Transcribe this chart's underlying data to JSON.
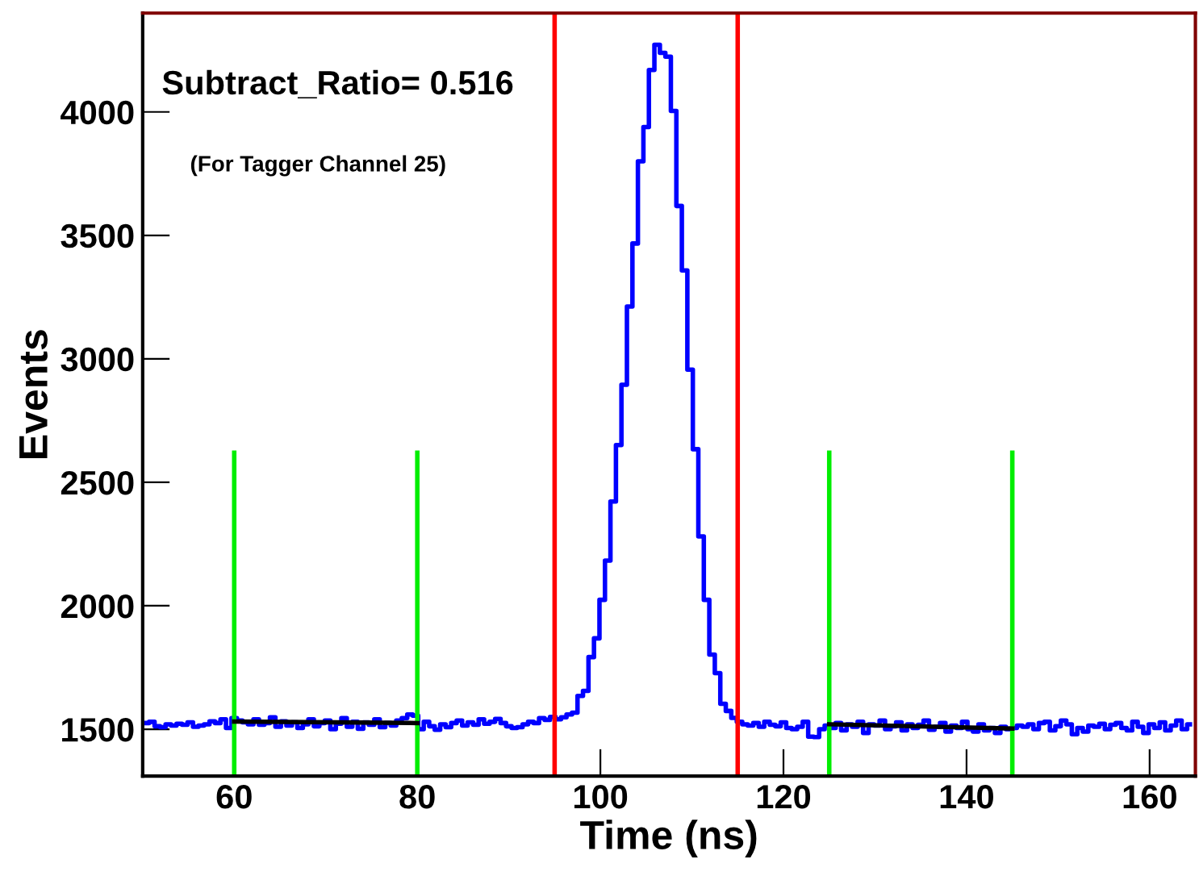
{
  "chart_data": {
    "type": "step",
    "xlabel": "Time (ns)",
    "ylabel": "Events",
    "annotations": [
      "Subtract_Ratio= 0.516",
      "(For Tagger Channel 25)"
    ],
    "x": [
      50.4,
      51.0,
      51.6,
      52.2,
      52.8,
      53.4,
      54.0,
      54.6,
      55.2,
      55.8,
      56.4,
      57.0,
      57.6,
      58.2,
      58.8,
      59.4,
      60.0,
      60.6,
      61.2,
      61.8,
      62.4,
      63.0,
      63.6,
      64.2,
      64.8,
      65.4,
      66.0,
      66.6,
      67.2,
      67.8,
      68.4,
      69.0,
      69.6,
      70.2,
      70.8,
      71.4,
      72.0,
      72.6,
      73.2,
      73.8,
      74.4,
      75.0,
      75.6,
      76.2,
      76.8,
      77.4,
      78.0,
      78.6,
      79.2,
      79.8,
      80.4,
      81.0,
      81.6,
      82.2,
      82.8,
      83.4,
      84.0,
      84.6,
      85.2,
      85.8,
      86.4,
      87.0,
      87.6,
      88.2,
      88.8,
      89.4,
      90.0,
      90.6,
      91.2,
      91.8,
      92.4,
      93.0,
      93.6,
      94.2,
      94.8,
      95.4,
      96.0,
      96.6,
      97.2,
      97.8,
      98.4,
      99.0,
      99.6,
      100.2,
      100.8,
      101.4,
      102.0,
      102.6,
      103.2,
      103.8,
      104.4,
      105.0,
      105.6,
      106.2,
      106.8,
      107.4,
      108.0,
      108.6,
      109.2,
      109.8,
      110.4,
      111.0,
      111.6,
      112.2,
      112.8,
      113.4,
      114.0,
      114.6,
      115.2,
      115.8,
      116.4,
      117.0,
      117.6,
      118.2,
      118.8,
      119.4,
      120.0,
      120.6,
      121.2,
      121.8,
      122.4,
      123.0,
      123.6,
      124.2,
      124.8,
      125.4,
      126.0,
      126.6,
      127.2,
      127.8,
      128.4,
      129.0,
      129.6,
      130.2,
      130.8,
      131.4,
      132.0,
      132.6,
      133.2,
      133.8,
      134.4,
      135.0,
      135.6,
      136.2,
      136.8,
      137.4,
      138.0,
      138.6,
      139.2,
      139.8,
      140.4,
      141.0,
      141.6,
      142.2,
      142.8,
      143.4,
      144.0,
      144.6,
      145.2,
      145.8,
      146.4,
      147.0,
      147.6,
      148.2,
      148.8,
      149.4,
      150.0,
      150.6,
      151.2,
      151.8,
      152.4,
      153.0,
      153.6,
      154.2,
      154.8,
      155.4,
      156.0,
      156.6,
      157.2,
      157.8,
      158.4,
      159.0,
      159.6,
      160.2,
      160.8,
      161.4,
      162.0,
      162.6,
      163.2,
      163.8,
      164.4
    ],
    "values": [
      1525,
      1530,
      1512,
      1508,
      1520,
      1515,
      1522,
      1518,
      1528,
      1510,
      1515,
      1520,
      1532,
      1525,
      1540,
      1505,
      1545,
      1535,
      1528,
      1520,
      1540,
      1518,
      1525,
      1548,
      1510,
      1532,
      1515,
      1528,
      1505,
      1520,
      1540,
      1512,
      1525,
      1535,
      1500,
      1522,
      1545,
      1510,
      1530,
      1502,
      1528,
      1518,
      1540,
      1508,
      1525,
      1515,
      1535,
      1545,
      1560,
      1555,
      1500,
      1530,
      1512,
      1498,
      1520,
      1508,
      1525,
      1535,
      1515,
      1528,
      1518,
      1540,
      1522,
      1530,
      1542,
      1525,
      1512,
      1505,
      1508,
      1520,
      1530,
      1525,
      1545,
      1538,
      1550,
      1540,
      1548,
      1560,
      1567,
      1635,
      1655,
      1792,
      1868,
      2024,
      2183,
      2422,
      2651,
      2895,
      3212,
      3467,
      3800,
      3939,
      4170,
      4272,
      4239,
      4224,
      4004,
      3619,
      3358,
      2956,
      2634,
      2281,
      2024,
      1802,
      1727,
      1603,
      1574,
      1546,
      1530,
      1520,
      1515,
      1525,
      1510,
      1530,
      1518,
      1512,
      1528,
      1505,
      1500,
      1510,
      1530,
      1470,
      1468,
      1500,
      1515,
      1505,
      1525,
      1495,
      1520,
      1510,
      1530,
      1485,
      1520,
      1515,
      1535,
      1500,
      1512,
      1528,
      1495,
      1520,
      1505,
      1518,
      1535,
      1498,
      1510,
      1525,
      1490,
      1515,
      1505,
      1530,
      1500,
      1490,
      1520,
      1495,
      1505,
      1485,
      1510,
      1500,
      1505,
      1515,
      1510,
      1520,
      1500,
      1525,
      1530,
      1495,
      1512,
      1535,
      1520,
      1480,
      1505,
      1490,
      1515,
      1510,
      1522,
      1500,
      1518,
      1525,
      1505,
      1495,
      1530,
      1510,
      1485,
      1520,
      1505,
      1528,
      1495,
      1515,
      1535,
      1500,
      1520
    ],
    "color": "#0000ff",
    "series": [
      {
        "type": "line",
        "color": "#00ee00",
        "x": [
          60,
          60
        ],
        "values": [
          1310,
          2620
        ]
      },
      {
        "type": "line",
        "color": "#00ee00",
        "x": [
          80,
          80
        ],
        "values": [
          1310,
          2620
        ]
      },
      {
        "type": "line",
        "color": "#00ee00",
        "x": [
          125,
          125
        ],
        "values": [
          1310,
          2620
        ]
      },
      {
        "type": "line",
        "color": "#00ee00",
        "x": [
          145,
          145
        ],
        "values": [
          1310,
          2620
        ]
      },
      {
        "type": "line",
        "color": "#000000",
        "x": [
          60,
          80
        ],
        "values": [
          1531,
          1525
        ]
      },
      {
        "type": "line",
        "color": "#000000",
        "x": [
          125,
          145
        ],
        "values": [
          1520,
          1503
        ]
      }
    ],
    "ref_lines": [
      {
        "axis": "x",
        "value": 95,
        "color": "#ff0000"
      },
      {
        "axis": "x",
        "value": 115,
        "color": "#ff0000"
      }
    ],
    "xlim": [
      50,
      165
    ],
    "xticks": [
      60,
      80,
      100,
      120,
      140,
      160
    ],
    "ylim": [
      1310,
      4400
    ],
    "yticks": [
      1500,
      2000,
      2500,
      3000,
      3500,
      4000
    ]
  }
}
